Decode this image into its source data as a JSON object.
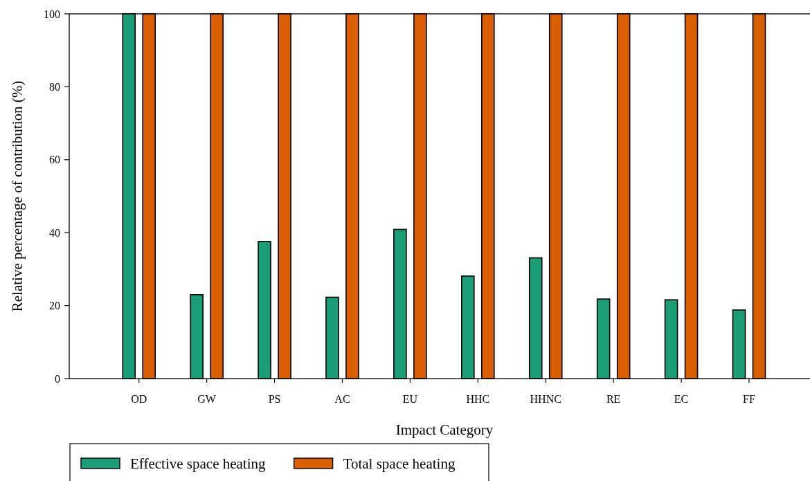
{
  "chart_data": {
    "type": "bar",
    "xlabel": "Impact Category",
    "ylabel": "Relative percentage of contribution (%)",
    "categories": [
      "OD",
      "GW",
      "PS",
      "AC",
      "EU",
      "HHC",
      "HHNC",
      "RE",
      "EC",
      "FF"
    ],
    "series": [
      {
        "name": "Effective space heating",
        "color": "#1b9e77",
        "values": [
          100,
          23,
          37.6,
          22.3,
          40.9,
          28.1,
          33.1,
          21.8,
          21.6,
          18.8
        ]
      },
      {
        "name": "Total space heating",
        "color": "#d95f02",
        "values": [
          100,
          100,
          100,
          100,
          100,
          100,
          100,
          100,
          100,
          100
        ]
      }
    ],
    "ylim": [
      0,
      100
    ],
    "yticks": [
      0,
      20,
      40,
      60,
      80,
      100
    ],
    "legend": "bottom left"
  }
}
